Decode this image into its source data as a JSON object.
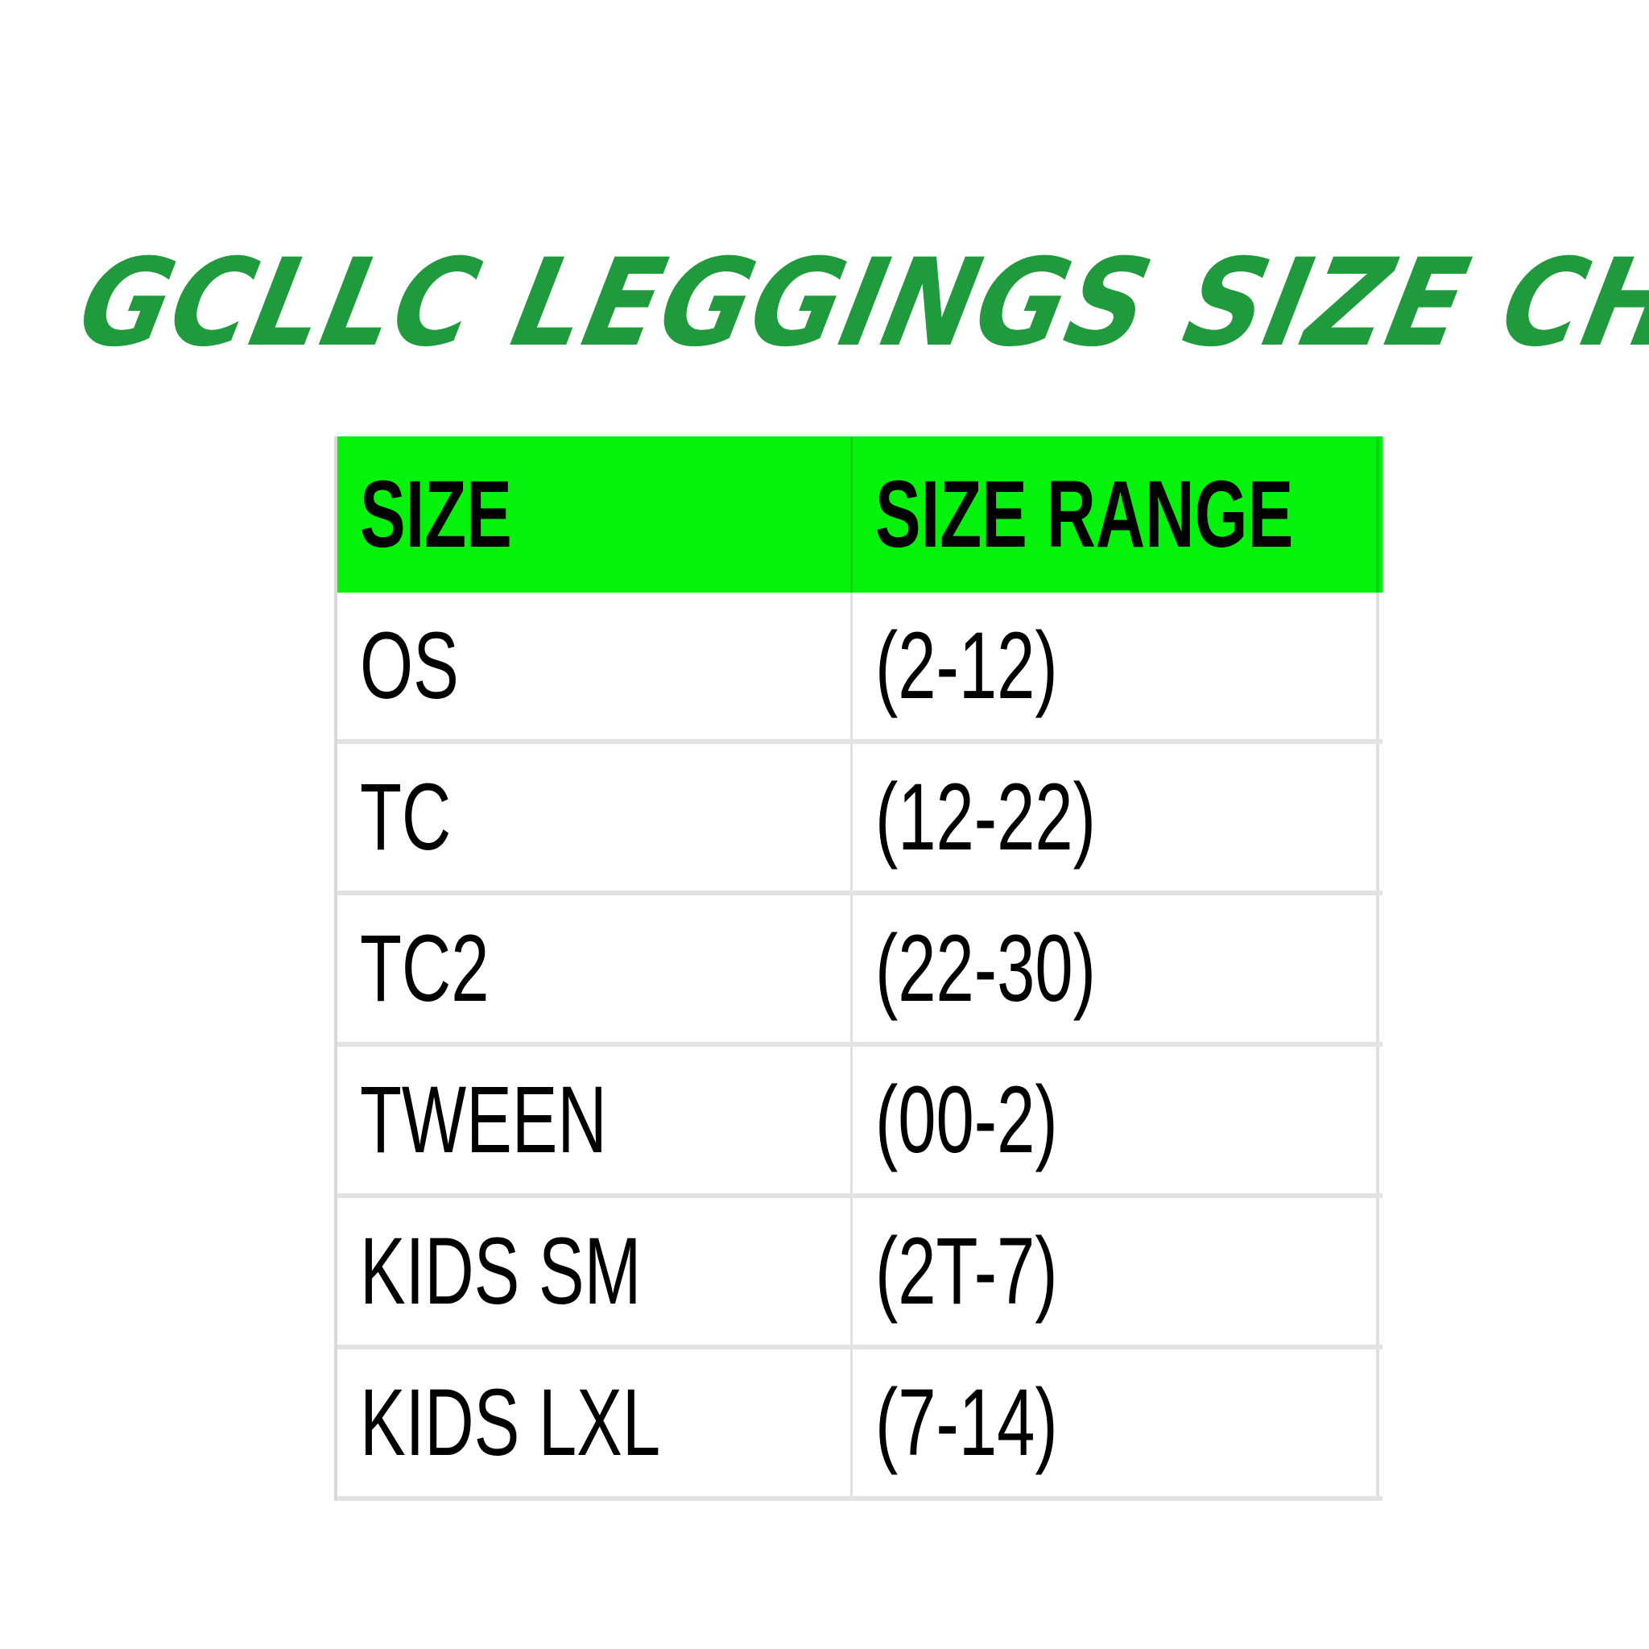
{
  "title": "GCLLC LEGGINGS SIZE CHART",
  "colors": {
    "title": "#1f9a3c",
    "header_bg": "#04f20c",
    "grid": "#e2e2e2"
  },
  "table": {
    "headers": [
      "SIZE",
      "SIZE RANGE"
    ],
    "rows": [
      [
        "OS",
        "(2-12)"
      ],
      [
        "TC",
        "(12-22)"
      ],
      [
        "TC2",
        "(22-30)"
      ],
      [
        "TWEEN",
        "(00-2)"
      ],
      [
        "KIDS SM",
        "(2T-7)"
      ],
      [
        "KIDS LXL",
        "(7-14)"
      ]
    ]
  }
}
